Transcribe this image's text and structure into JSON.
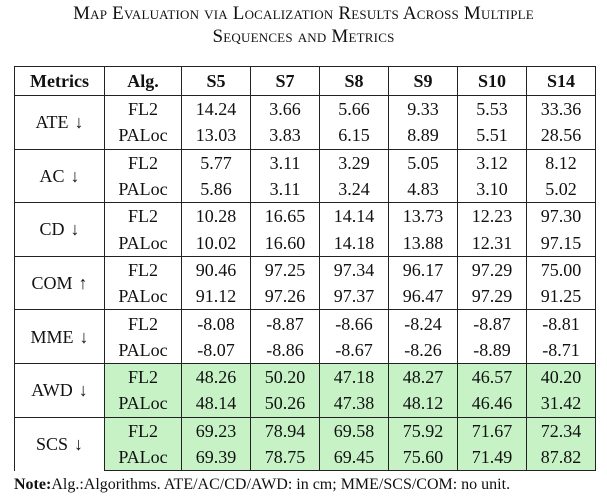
{
  "caption": {
    "line1": "Map Evaluation via Localization Results Across Multiple",
    "line2": "Sequences and Metrics"
  },
  "table": {
    "headers": [
      "Metrics",
      "Alg.",
      "S5",
      "S7",
      "S8",
      "S9",
      "S10",
      "S14"
    ],
    "groups": [
      {
        "metric": "ATE",
        "arrow": "↓",
        "highlight": false,
        "rows": [
          {
            "alg": "FL2",
            "values": [
              "14.24",
              "3.66",
              "5.66",
              "9.33",
              "5.53",
              "33.36"
            ]
          },
          {
            "alg": "PALoc",
            "values": [
              "13.03",
              "3.83",
              "6.15",
              "8.89",
              "5.51",
              "28.56"
            ]
          }
        ]
      },
      {
        "metric": "AC",
        "arrow": "↓",
        "highlight": false,
        "rows": [
          {
            "alg": "FL2",
            "values": [
              "5.77",
              "3.11",
              "3.29",
              "5.05",
              "3.12",
              "8.12"
            ]
          },
          {
            "alg": "PALoc",
            "values": [
              "5.86",
              "3.11",
              "3.24",
              "4.83",
              "3.10",
              "5.02"
            ]
          }
        ]
      },
      {
        "metric": "CD",
        "arrow": "↓",
        "highlight": false,
        "rows": [
          {
            "alg": "FL2",
            "values": [
              "10.28",
              "16.65",
              "14.14",
              "13.73",
              "12.23",
              "97.30"
            ]
          },
          {
            "alg": "PALoc",
            "values": [
              "10.02",
              "16.60",
              "14.18",
              "13.88",
              "12.31",
              "97.15"
            ]
          }
        ]
      },
      {
        "metric": "COM",
        "arrow": "↑",
        "highlight": false,
        "rows": [
          {
            "alg": "FL2",
            "values": [
              "90.46",
              "97.25",
              "97.34",
              "96.17",
              "97.29",
              "75.00"
            ]
          },
          {
            "alg": "PALoc",
            "values": [
              "91.12",
              "97.26",
              "97.37",
              "96.47",
              "97.29",
              "91.25"
            ]
          }
        ]
      },
      {
        "metric": "MME",
        "arrow": "↓",
        "highlight": false,
        "rows": [
          {
            "alg": "FL2",
            "values": [
              "-8.08",
              "-8.87",
              "-8.66",
              "-8.24",
              "-8.87",
              "-8.81"
            ]
          },
          {
            "alg": "PALoc",
            "values": [
              "-8.07",
              "-8.86",
              "-8.67",
              "-8.26",
              "-8.89",
              "-8.71"
            ]
          }
        ]
      },
      {
        "metric": "AWD",
        "arrow": "↓",
        "highlight": true,
        "rows": [
          {
            "alg": "FL2",
            "values": [
              "48.26",
              "50.20",
              "47.18",
              "48.27",
              "46.57",
              "40.20"
            ]
          },
          {
            "alg": "PALoc",
            "values": [
              "48.14",
              "50.26",
              "47.38",
              "48.12",
              "46.46",
              "31.42"
            ]
          }
        ]
      },
      {
        "metric": "SCS",
        "arrow": "↓",
        "highlight": true,
        "rows": [
          {
            "alg": "FL2",
            "values": [
              "69.23",
              "78.94",
              "69.58",
              "75.92",
              "71.67",
              "72.34"
            ]
          },
          {
            "alg": "PALoc",
            "values": [
              "69.39",
              "78.75",
              "69.45",
              "75.60",
              "71.49",
              "87.82"
            ]
          }
        ]
      }
    ]
  },
  "note": {
    "label": "Note:",
    "text": "Alg.:Algorithms. ATE/AC/CD/AWD: in cm; MME/SCS/COM: no unit."
  },
  "colors": {
    "highlight": "#c6f2c6",
    "rule": "#222222"
  }
}
